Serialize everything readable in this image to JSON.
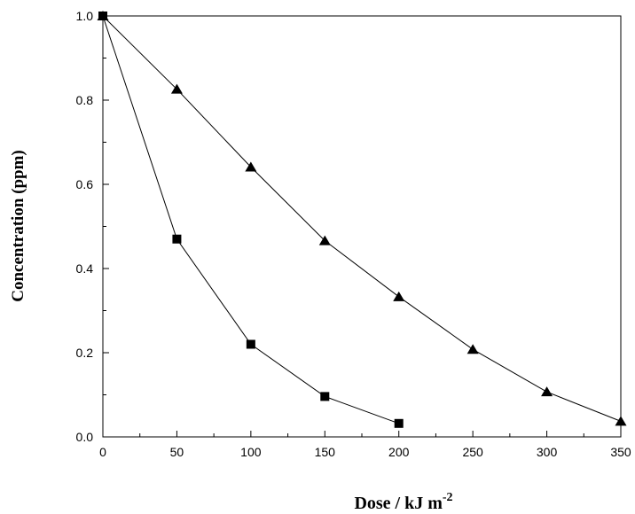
{
  "chart_data": {
    "type": "line",
    "title": "",
    "xlabel": "Dose / kJ m",
    "xlabel_superscript": "-2",
    "ylabel": "Concentration (ppm)",
    "xlim": [
      0,
      350
    ],
    "ylim": [
      0.0,
      1.0
    ],
    "x_ticks": [
      0,
      50,
      100,
      150,
      200,
      250,
      300,
      350
    ],
    "x_tick_labels": [
      "0",
      "50",
      "100",
      "150",
      "200",
      "250",
      "300",
      "350"
    ],
    "y_ticks": [
      0.0,
      0.2,
      0.4,
      0.6,
      0.8,
      1.0
    ],
    "y_tick_labels": [
      "0.0",
      "0.2",
      "0.4",
      "0.6",
      "0.8",
      "1.0"
    ],
    "grid": false,
    "legend": "none",
    "series": [
      {
        "marker": "square",
        "color": "#000000",
        "x": [
          0,
          50,
          100,
          150,
          200
        ],
        "y": [
          1.0,
          0.47,
          0.22,
          0.096,
          0.032
        ]
      },
      {
        "marker": "triangle",
        "color": "#000000",
        "x": [
          0,
          50,
          100,
          150,
          200,
          250,
          300,
          350
        ],
        "y": [
          1.0,
          0.826,
          0.641,
          0.466,
          0.333,
          0.208,
          0.107,
          0.037
        ]
      }
    ]
  }
}
